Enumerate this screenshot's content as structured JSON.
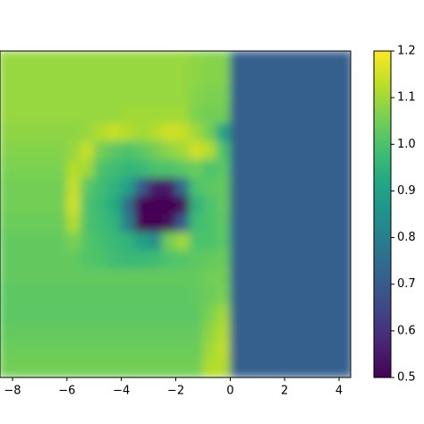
{
  "chart_data": {
    "type": "heatmap",
    "colormap": "viridis",
    "xlim": [
      -8.5,
      4.5
    ],
    "xticks": [
      {
        "value": -8,
        "label": "−8"
      },
      {
        "value": -6,
        "label": "−6"
      },
      {
        "value": -4,
        "label": "−4"
      },
      {
        "value": -2,
        "label": "−2"
      },
      0,
      2,
      4
    ],
    "clim": [
      0.5,
      1.2
    ],
    "cticks": [
      0.5,
      0.6,
      0.7,
      0.8,
      0.9,
      {
        "value": 1,
        "label": "1.0"
      },
      1.1,
      1.2
    ],
    "z": [
      [
        1.09,
        1.09,
        1.09,
        1.09,
        1.09,
        1.09,
        1.09,
        1.09,
        1.09,
        1.09,
        1.09,
        1.09,
        1.09,
        1.09,
        1.08,
        1.07,
        1.07,
        0.71,
        0.71,
        0.71,
        0.71,
        0.71,
        0.71,
        0.71,
        0.71,
        0.71
      ],
      [
        1.09,
        1.09,
        1.09,
        1.09,
        1.09,
        1.09,
        1.09,
        1.09,
        1.09,
        1.09,
        1.09,
        1.09,
        1.09,
        1.09,
        1.08,
        1.07,
        1.07,
        0.71,
        0.71,
        0.71,
        0.71,
        0.71,
        0.71,
        0.71,
        0.71,
        0.71
      ],
      [
        1.09,
        1.09,
        1.09,
        1.09,
        1.09,
        1.09,
        1.09,
        1.09,
        1.09,
        1.09,
        1.09,
        1.09,
        1.09,
        1.09,
        1.07,
        1.06,
        1.06,
        0.71,
        0.71,
        0.71,
        0.71,
        0.71,
        0.71,
        0.71,
        0.71,
        0.71
      ],
      [
        1.09,
        1.09,
        1.09,
        1.09,
        1.09,
        1.09,
        1.09,
        1.09,
        1.09,
        1.1,
        1.1,
        1.1,
        1.1,
        1.1,
        1.06,
        1.05,
        1.05,
        0.71,
        0.71,
        0.71,
        0.71,
        0.71,
        0.71,
        0.71,
        0.71,
        0.71
      ],
      [
        1.08,
        1.08,
        1.08,
        1.08,
        1.08,
        1.08,
        1.09,
        1.12,
        1.14,
        1.12,
        1.1,
        1.12,
        1.15,
        1.14,
        1.1,
        1.05,
        0.9,
        0.71,
        0.71,
        0.71,
        0.71,
        0.71,
        0.71,
        0.71,
        0.71,
        0.71
      ],
      [
        1.07,
        1.07,
        1.07,
        1.07,
        1.07,
        1.09,
        1.14,
        1.05,
        1.02,
        1.0,
        1.02,
        1.05,
        1.08,
        1.1,
        1.15,
        1.12,
        1.0,
        0.71,
        0.71,
        0.71,
        0.71,
        0.71,
        0.71,
        0.71,
        0.71,
        0.71
      ],
      [
        1.06,
        1.06,
        1.06,
        1.06,
        1.06,
        1.12,
        1.1,
        1.0,
        0.98,
        0.96,
        0.97,
        1.0,
        1.0,
        1.02,
        1.04,
        1.0,
        1.02,
        0.71,
        0.71,
        0.71,
        0.71,
        0.71,
        0.71,
        0.71,
        0.71,
        0.71
      ],
      [
        1.05,
        1.05,
        1.05,
        1.05,
        1.05,
        1.14,
        1.02,
        0.98,
        0.95,
        0.9,
        0.7,
        0.55,
        0.55,
        0.75,
        1.0,
        1.02,
        1.03,
        0.71,
        0.71,
        0.71,
        0.71,
        0.71,
        0.71,
        0.71,
        0.71,
        0.71
      ],
      [
        1.05,
        1.05,
        1.05,
        1.05,
        1.05,
        1.15,
        1.0,
        0.97,
        0.93,
        0.75,
        0.5,
        0.5,
        0.5,
        0.52,
        0.95,
        1.0,
        1.03,
        0.71,
        0.71,
        0.71,
        0.71,
        0.71,
        0.71,
        0.71,
        0.71,
        0.71
      ],
      [
        1.04,
        1.04,
        1.04,
        1.04,
        1.04,
        1.12,
        1.0,
        0.98,
        0.95,
        0.8,
        0.5,
        0.5,
        0.52,
        0.7,
        0.98,
        1.0,
        1.02,
        0.71,
        0.71,
        0.71,
        0.71,
        0.71,
        0.71,
        0.71,
        0.71,
        0.71
      ],
      [
        1.03,
        1.03,
        1.03,
        1.03,
        1.03,
        1.06,
        1.01,
        0.99,
        0.97,
        0.95,
        0.9,
        0.85,
        1.05,
        1.1,
        1.0,
        1.0,
        1.02,
        0.71,
        0.71,
        0.71,
        0.71,
        0.71,
        0.71,
        0.71,
        0.71,
        0.71
      ],
      [
        1.03,
        1.03,
        1.03,
        1.03,
        1.03,
        1.03,
        1.01,
        1.0,
        0.98,
        0.97,
        0.97,
        0.98,
        1.0,
        1.01,
        1.02,
        1.03,
        1.04,
        0.71,
        0.71,
        0.71,
        0.71,
        0.71,
        0.71,
        0.71,
        0.71,
        0.71
      ],
      [
        1.03,
        1.03,
        1.03,
        1.03,
        1.03,
        1.03,
        1.03,
        1.03,
        1.03,
        1.03,
        1.03,
        1.03,
        1.03,
        1.03,
        1.03,
        1.05,
        1.05,
        0.71,
        0.71,
        0.71,
        0.71,
        0.71,
        0.71,
        0.71,
        0.71,
        0.71
      ],
      [
        1.02,
        1.02,
        1.02,
        1.02,
        1.02,
        1.02,
        1.02,
        1.02,
        1.02,
        1.02,
        1.02,
        1.02,
        1.02,
        1.02,
        1.03,
        1.04,
        1.06,
        0.71,
        0.71,
        0.71,
        0.71,
        0.71,
        0.71,
        0.71,
        0.71,
        0.71
      ],
      [
        1.02,
        1.02,
        1.02,
        1.02,
        1.02,
        1.02,
        1.02,
        1.02,
        1.02,
        1.02,
        1.02,
        1.02,
        1.02,
        1.02,
        1.02,
        1.06,
        1.1,
        0.71,
        0.71,
        0.71,
        0.71,
        0.71,
        0.71,
        0.71,
        0.71,
        0.71
      ],
      [
        1.03,
        1.03,
        1.03,
        1.03,
        1.03,
        1.03,
        1.03,
        1.03,
        1.03,
        1.03,
        1.03,
        1.03,
        1.03,
        1.03,
        1.03,
        1.08,
        1.12,
        0.71,
        0.71,
        0.71,
        0.71,
        0.71,
        0.71,
        0.71,
        0.71,
        0.71
      ],
      [
        1.04,
        1.04,
        1.04,
        1.04,
        1.04,
        1.04,
        1.04,
        1.04,
        1.04,
        1.04,
        1.04,
        1.04,
        1.04,
        1.04,
        1.04,
        1.1,
        1.13,
        0.71,
        0.71,
        0.71,
        0.71,
        0.71,
        0.71,
        0.71,
        0.71,
        0.71
      ],
      [
        1.05,
        1.05,
        1.05,
        1.05,
        1.05,
        1.05,
        1.05,
        1.05,
        1.05,
        1.05,
        1.05,
        1.05,
        1.05,
        1.05,
        1.05,
        1.12,
        1.12,
        0.71,
        0.71,
        0.71,
        0.71,
        0.71,
        0.71,
        0.71,
        0.71,
        0.71
      ]
    ]
  }
}
